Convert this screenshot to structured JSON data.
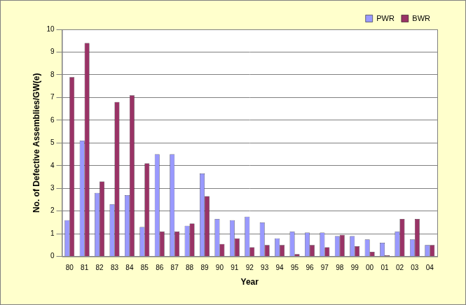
{
  "chart_data": {
    "type": "bar",
    "x_label": "Year",
    "y_label": "No. of Defective Assemblies/GW(e)",
    "categories": [
      "80",
      "81",
      "82",
      "83",
      "84",
      "85",
      "86",
      "87",
      "88",
      "89",
      "90",
      "91",
      "92",
      "93",
      "94",
      "95",
      "96",
      "97",
      "98",
      "99",
      "00",
      "01",
      "02",
      "03",
      "04"
    ],
    "series": [
      {
        "name": "PWR",
        "color": "#9999ff",
        "values": [
          1.6,
          5.1,
          2.8,
          2.3,
          2.7,
          1.3,
          4.5,
          4.5,
          1.35,
          3.65,
          1.65,
          1.6,
          1.75,
          1.5,
          0.8,
          1.1,
          1.05,
          1.05,
          0.9,
          0.9,
          0.75,
          0.6,
          1.1,
          0.75,
          0.5
        ]
      },
      {
        "name": "BWR",
        "color": "#993366",
        "values": [
          7.9,
          9.4,
          3.3,
          6.8,
          7.1,
          4.1,
          1.1,
          1.1,
          1.45,
          2.65,
          0.55,
          0.8,
          0.4,
          0.5,
          0.5,
          0.1,
          0.5,
          0.4,
          0.95,
          0.45,
          0.2,
          0.05,
          1.65,
          1.65,
          0.5
        ]
      }
    ],
    "ylim": [
      0,
      10
    ],
    "yticks": [
      0,
      1,
      2,
      3,
      4,
      5,
      6,
      7,
      8,
      9,
      10
    ],
    "grid": true,
    "legend": "upper right"
  }
}
